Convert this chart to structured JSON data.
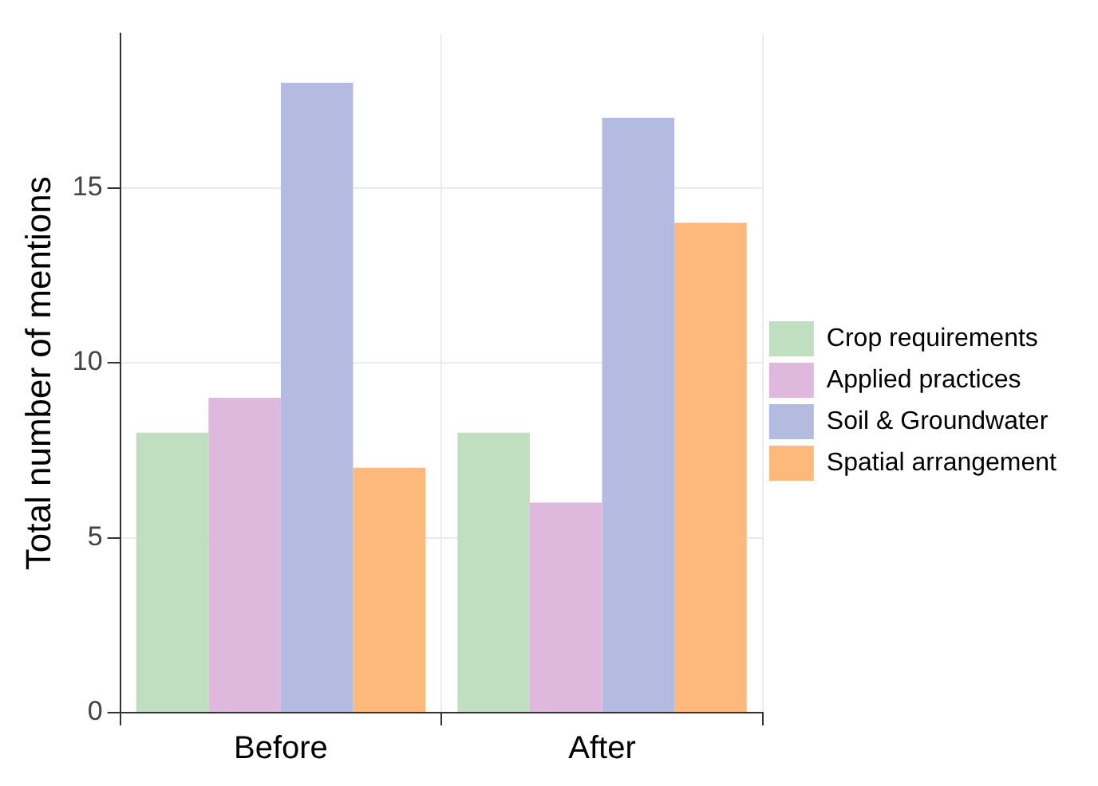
{
  "chart_data": {
    "type": "bar",
    "ylabel": "Total number of mentions",
    "categories": [
      "Before",
      "After"
    ],
    "series": [
      {
        "name": "Crop requirements",
        "color": "#bfdfc0",
        "values": [
          8,
          8
        ]
      },
      {
        "name": "Applied practices",
        "color": "#dfb8de",
        "values": [
          9,
          6
        ]
      },
      {
        "name": "Soil & Groundwater",
        "color": "#b3bbe0",
        "values": [
          18,
          17
        ]
      },
      {
        "name": "Spatial arrangement",
        "color": "#fdb97c",
        "values": [
          7,
          14
        ]
      }
    ],
    "ylim": [
      0,
      19.4
    ],
    "yticks": [
      0,
      5,
      10,
      15
    ],
    "grid": true,
    "legend": "right"
  }
}
